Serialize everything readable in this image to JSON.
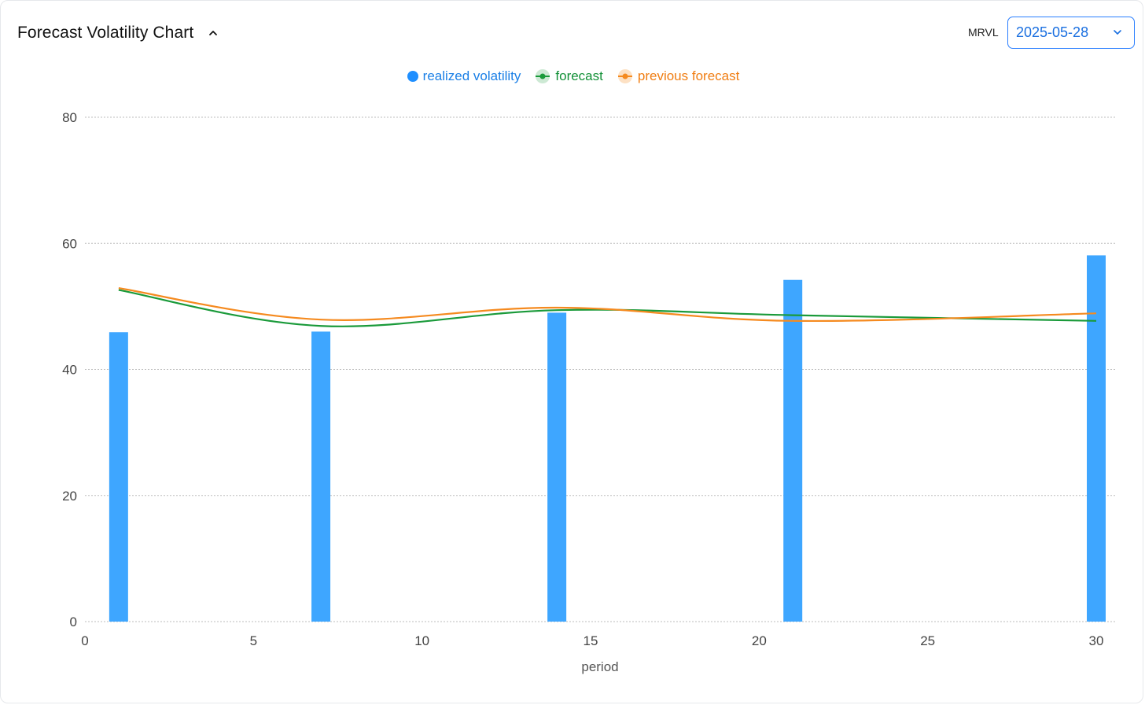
{
  "header": {
    "title": "Forecast Volatility Chart",
    "ticker": "MRVL",
    "date": "2025-05-28"
  },
  "colors": {
    "bar": "#3ea6ff",
    "forecast": "#1a9a3a",
    "previous_forecast": "#f58a1f",
    "legend_blue": "#1a7fe6",
    "legend_green": "#129037",
    "legend_orange": "#f07d12"
  },
  "icons": {
    "collapse": "chevron-up-icon",
    "dropdown": "chevron-down-icon"
  },
  "chart_data": {
    "type": "bar",
    "title": "",
    "xlabel": "period",
    "ylabel": "",
    "xlim": [
      0,
      30
    ],
    "ylim": [
      0,
      80
    ],
    "xticks": [
      0,
      5,
      10,
      15,
      20,
      25,
      30
    ],
    "yticks": [
      0,
      20,
      40,
      60,
      80
    ],
    "grid": true,
    "legend_position": "top-center",
    "series": [
      {
        "name": "realized volatility",
        "kind": "bar",
        "x": [
          1,
          7,
          14,
          21,
          30
        ],
        "values": [
          45.9,
          46.0,
          49.0,
          54.2,
          58.1
        ]
      },
      {
        "name": "forecast",
        "kind": "line",
        "x": [
          1,
          7,
          14,
          21,
          30
        ],
        "values": [
          52.6,
          46.9,
          49.4,
          48.6,
          47.7
        ]
      },
      {
        "name": "previous forecast",
        "kind": "line",
        "x": [
          1,
          7,
          14,
          21,
          30
        ],
        "values": [
          52.9,
          47.9,
          49.8,
          47.7,
          48.9
        ]
      }
    ]
  }
}
